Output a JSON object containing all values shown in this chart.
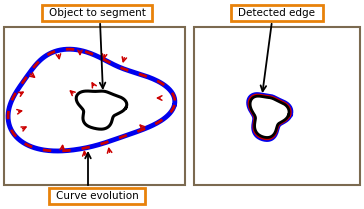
{
  "bg_color": "#ffffff",
  "box_border_color": "#7B6A50",
  "orange_color": "#E8820A",
  "label1": "Object to segment",
  "label2": "Detected edge",
  "label3": "Curve evolution",
  "red_color": "#CC0000",
  "blue_color": "#0000EE",
  "black_color": "#000000",
  "fig_w": 3.64,
  "fig_h": 2.09,
  "dpi": 100
}
